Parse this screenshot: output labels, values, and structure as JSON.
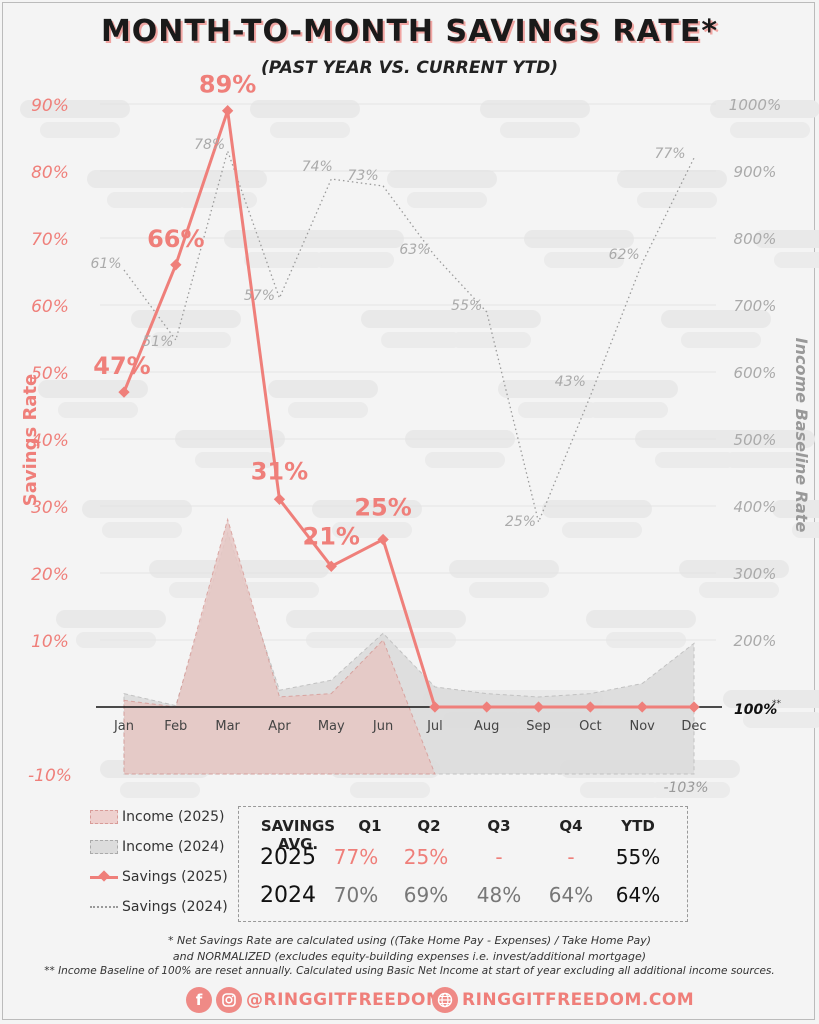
{
  "title": "MONTH-TO-MONTH SAVINGS RATE*",
  "subtitle": "(PAST YEAR VS. CURRENT YTD)",
  "chart_data": {
    "type": "line",
    "categories": [
      "Jan",
      "Feb",
      "Mar",
      "Apr",
      "May",
      "Jun",
      "Jul",
      "Aug",
      "Sep",
      "Oct",
      "Nov",
      "Dec"
    ],
    "ylabel": "Savings Rate",
    "y2label": "Income Baseline Rate",
    "ylim": [
      -10,
      90
    ],
    "y2lim": [
      0,
      1000
    ],
    "yticks": [
      "-10%",
      "10%",
      "20%",
      "30%",
      "40%",
      "50%",
      "60%",
      "70%",
      "80%",
      "90%"
    ],
    "y2ticks": [
      "100%",
      "200%",
      "300%",
      "400%",
      "500%",
      "600%",
      "700%",
      "800%",
      "900%",
      "1000%"
    ],
    "baseline_label": "100%",
    "baseline_note": "**",
    "series": [
      {
        "name": "Savings (2025)",
        "axis": "left",
        "values": [
          47,
          66,
          89,
          31,
          21,
          25,
          0,
          0,
          0,
          0,
          0,
          0
        ],
        "labels": [
          "47%",
          "66%",
          "89%",
          "31%",
          "21%",
          "25%"
        ],
        "color": "#ef7f7a"
      },
      {
        "name": "Savings (2024)",
        "axis": "left",
        "values": [
          61,
          51,
          78,
          57,
          74,
          73,
          63,
          55,
          25,
          43,
          62,
          77
        ],
        "labels": [
          "61%",
          "51%",
          "78%",
          "57%",
          "74%",
          "73%",
          "63%",
          "55%",
          "25%",
          "43%",
          "62%",
          "77%"
        ],
        "color": "#999999"
      },
      {
        "name": "Income (2025)",
        "axis": "right",
        "values": [
          110,
          100,
          380,
          115,
          120,
          200,
          0,
          0,
          0,
          0,
          0,
          0
        ],
        "color": "#e8c6c4"
      },
      {
        "name": "Income (2024)",
        "axis": "right",
        "values": [
          120,
          102,
          360,
          125,
          140,
          210,
          130,
          120,
          115,
          120,
          135,
          195
        ],
        "color": "#d6d6d6"
      }
    ],
    "annotation": "-103%"
  },
  "legend": {
    "items": [
      "Income (2025)",
      "Income (2024)",
      "Savings (2025)",
      "Savings (2024)"
    ]
  },
  "summary": {
    "header": [
      "SAVINGS AVG.",
      "Q1",
      "Q2",
      "Q3",
      "Q4",
      "YTD"
    ],
    "rows": [
      {
        "year": "2025",
        "q1": "77%",
        "q2": "25%",
        "q3": "-",
        "q4": "-",
        "ytd": "55%"
      },
      {
        "year": "2024",
        "q1": "70%",
        "q2": "69%",
        "q3": "48%",
        "q4": "64%",
        "ytd": "64%"
      }
    ]
  },
  "footnotes": {
    "line1": "* Net Savings Rate are calculated using ((Take Home Pay - Expenses) / Take Home Pay)",
    "line2": "and NORMALIZED (excludes equity-building expenses i.e. invest/additional mortgage)",
    "line3": "**  Income Baseline of 100% are reset annually.  Calculated using Basic Net Income at start of year excluding all additional income sources."
  },
  "social": {
    "handle": "@RINGGITFREEDOM",
    "website": "RINGGITFREEDOM.COM",
    "icons": [
      "facebook-icon",
      "instagram-icon",
      "globe-icon"
    ]
  }
}
